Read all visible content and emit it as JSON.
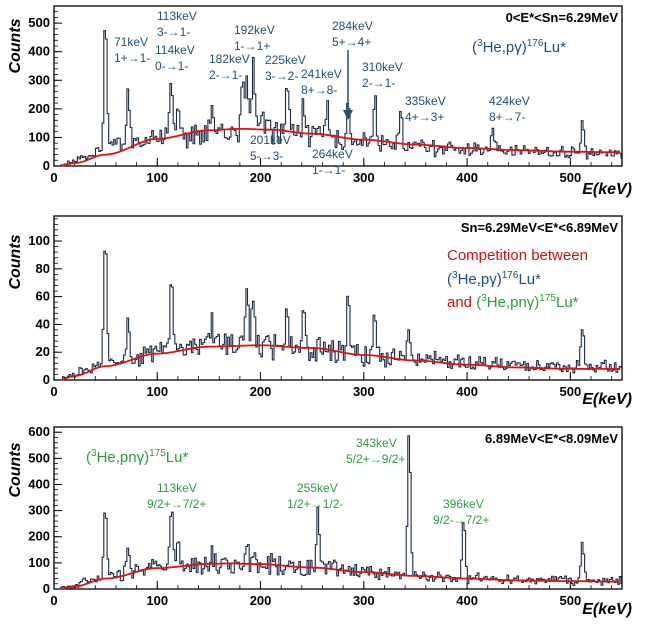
{
  "chart_data": [
    {
      "type": "line",
      "range_label": "0<E*<Sn=6.29MeV",
      "xlabel": "E(keV)",
      "ylabel": "Counts",
      "xlim": [
        0,
        550
      ],
      "ylim": [
        0,
        560
      ],
      "x_ticks": [
        0,
        100,
        200,
        300,
        400,
        500
      ],
      "y_ticks": [
        0,
        100,
        200,
        300,
        400,
        500
      ],
      "grid": false,
      "colors": {
        "spectrum": "#1a2a44",
        "background_fit": "#dd1111",
        "label": "#1f4e79"
      },
      "reaction": {
        "prefix": "(",
        "sup1": "3",
        "middle": "He,pγ)",
        "sup2": "176",
        "suffix": "Lu*",
        "color": "#1f4e79"
      },
      "spectrum": {
        "baseline": {
          "x": [
            5,
            15,
            30,
            60,
            100,
            150,
            190,
            230,
            280,
            330,
            380,
            430,
            480,
            520,
            550
          ],
          "y": [
            0,
            10,
            35,
            70,
            95,
            115,
            125,
            115,
            90,
            75,
            60,
            55,
            50,
            45,
            45
          ]
        },
        "peaks": [
          {
            "x": 49,
            "y": 535
          },
          {
            "x": 71,
            "y": 270
          },
          {
            "x": 113,
            "y": 310
          },
          {
            "x": 119,
            "y": 230
          },
          {
            "x": 152,
            "y": 170
          },
          {
            "x": 182,
            "y": 260
          },
          {
            "x": 186,
            "y": 340
          },
          {
            "x": 192,
            "y": 350
          },
          {
            "x": 201,
            "y": 240
          },
          {
            "x": 225,
            "y": 280
          },
          {
            "x": 241,
            "y": 220
          },
          {
            "x": 264,
            "y": 200
          },
          {
            "x": 284,
            "y": 260
          },
          {
            "x": 310,
            "y": 270
          },
          {
            "x": 335,
            "y": 190
          },
          {
            "x": 424,
            "y": 150
          },
          {
            "x": 511,
            "y": 170
          }
        ]
      },
      "background_fit": {
        "x": [
          5,
          20,
          50,
          100,
          150,
          180,
          210,
          250,
          300,
          350,
          400,
          450,
          500,
          550
        ],
        "y": [
          0,
          10,
          40,
          95,
          125,
          130,
          127,
          113,
          92,
          75,
          63,
          55,
          50,
          48
        ]
      },
      "annotations": [
        {
          "lines": [
            "71keV",
            "1+→1-"
          ]
        },
        {
          "lines": [
            "113keV",
            "3-→1-"
          ]
        },
        {
          "lines": [
            "114keV",
            "0-→1-"
          ]
        },
        {
          "lines": [
            "182keV",
            "2-→1-"
          ]
        },
        {
          "lines": [
            "192keV",
            "1-→1+"
          ]
        },
        {
          "lines": [
            "225keV",
            "3-→2-"
          ]
        },
        {
          "lines": [
            "241keV",
            "8+→8-"
          ]
        },
        {
          "lines": [
            "284keV",
            "5+→4+"
          ]
        },
        {
          "lines": [
            "310keV",
            "2-→1-"
          ]
        },
        {
          "lines": [
            "335keV",
            "4+→3+"
          ]
        },
        {
          "lines": [
            "424keV",
            "8+→7-"
          ]
        },
        {
          "lines": [
            "201keV",
            "5-→3-"
          ]
        },
        {
          "lines": [
            "264keV",
            "1-→1-"
          ]
        }
      ]
    },
    {
      "type": "line",
      "range_label": "Sn=6.29MeV<E*<6.89MeV",
      "xlabel": "E(keV)",
      "ylabel": "Counts",
      "xlim": [
        0,
        550
      ],
      "ylim": [
        0,
        118
      ],
      "x_ticks": [
        0,
        100,
        200,
        300,
        400,
        500
      ],
      "y_ticks": [
        0,
        20,
        40,
        60,
        80,
        100
      ],
      "grid": false,
      "colors": {
        "spectrum": "#1a2a44",
        "background_fit": "#dd1111"
      },
      "competition": {
        "title": "Competition between",
        "title_color": "#cc1111",
        "line1": {
          "prefix": "(",
          "sup1": "3",
          "middle": "He,pγ)",
          "sup2": "176",
          "suffix": "Lu*",
          "color": "#1f4e79"
        },
        "line2": {
          "connector": "and ",
          "connector_color": "#cc1111",
          "prefix": "(",
          "sup1": "3",
          "middle": "He,pnγ)",
          "sup2": "175",
          "suffix": "Lu*",
          "color": "#2a9d3a"
        }
      },
      "spectrum": {
        "baseline": {
          "x": [
            5,
            15,
            30,
            60,
            100,
            150,
            200,
            250,
            300,
            350,
            400,
            450,
            500,
            550
          ],
          "y": [
            0,
            3,
            8,
            14,
            20,
            24,
            25,
            22,
            18,
            15,
            12,
            10,
            9,
            10
          ]
        },
        "peaks": [
          {
            "x": 49,
            "y": 110
          },
          {
            "x": 71,
            "y": 45
          },
          {
            "x": 113,
            "y": 70
          },
          {
            "x": 152,
            "y": 50
          },
          {
            "x": 186,
            "y": 72
          },
          {
            "x": 192,
            "y": 62
          },
          {
            "x": 225,
            "y": 55
          },
          {
            "x": 241,
            "y": 48
          },
          {
            "x": 284,
            "y": 58
          },
          {
            "x": 310,
            "y": 45
          },
          {
            "x": 343,
            "y": 40
          },
          {
            "x": 511,
            "y": 40
          }
        ]
      },
      "background_fit": {
        "x": [
          5,
          20,
          50,
          100,
          150,
          200,
          250,
          300,
          350,
          400,
          450,
          500,
          550
        ],
        "y": [
          0,
          3,
          10,
          19,
          24,
          25,
          23,
          18,
          14,
          11,
          9,
          8,
          8
        ]
      }
    },
    {
      "type": "line",
      "range_label": "6.89MeV<E*<8.09MeV",
      "xlabel": "E(keV)",
      "ylabel": "Counts",
      "xlim": [
        0,
        550
      ],
      "ylim": [
        0,
        620
      ],
      "x_ticks": [
        0,
        100,
        200,
        300,
        400,
        500
      ],
      "y_ticks": [
        0,
        100,
        200,
        300,
        400,
        500,
        600
      ],
      "grid": false,
      "colors": {
        "spectrum": "#1a2a44",
        "background_fit": "#dd1111",
        "label": "#2a9d3a"
      },
      "reaction": {
        "prefix": "(",
        "sup1": "3",
        "middle": "He,pnγ)",
        "sup2": "175",
        "suffix": "Lu*",
        "color": "#2a9d3a"
      },
      "spectrum": {
        "baseline": {
          "x": [
            5,
            15,
            30,
            60,
            100,
            150,
            200,
            250,
            300,
            350,
            400,
            450,
            500,
            550
          ],
          "y": [
            0,
            10,
            30,
            55,
            80,
            95,
            95,
            85,
            65,
            50,
            40,
            35,
            30,
            30
          ]
        },
        "peaks": [
          {
            "x": 49,
            "y": 320
          },
          {
            "x": 71,
            "y": 170
          },
          {
            "x": 113,
            "y": 300
          },
          {
            "x": 119,
            "y": 200
          },
          {
            "x": 152,
            "y": 130
          },
          {
            "x": 186,
            "y": 180
          },
          {
            "x": 255,
            "y": 310
          },
          {
            "x": 343,
            "y": 595
          },
          {
            "x": 396,
            "y": 280
          },
          {
            "x": 511,
            "y": 190
          }
        ]
      },
      "background_fit": {
        "x": [
          5,
          20,
          50,
          100,
          150,
          170,
          200,
          250,
          300,
          350,
          400,
          450,
          500,
          550
        ],
        "y": [
          0,
          10,
          40,
          80,
          96,
          98,
          95,
          82,
          65,
          50,
          40,
          33,
          30,
          28
        ]
      },
      "annotations": [
        {
          "lines": [
            "113keV",
            "9/2+→7/2+"
          ]
        },
        {
          "lines": [
            "255keV",
            "1/2+→1/2-"
          ]
        },
        {
          "lines": [
            "343keV",
            "5/2+→9/2+"
          ]
        },
        {
          "lines": [
            "396keV",
            "9/2-→7/2+"
          ]
        }
      ]
    }
  ]
}
